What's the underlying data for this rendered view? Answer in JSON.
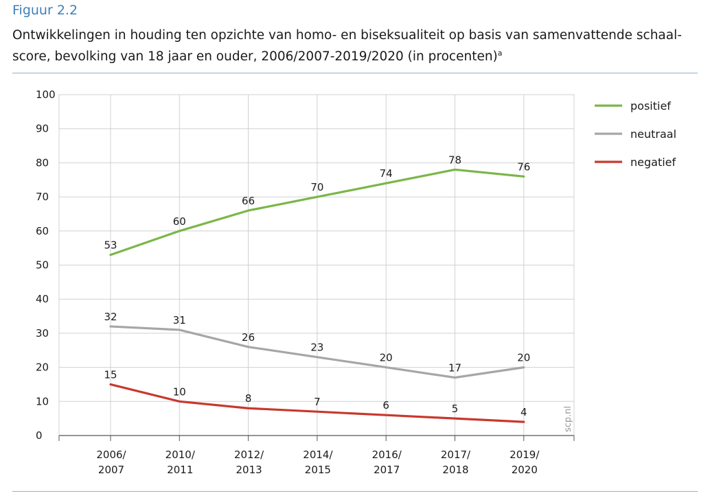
{
  "figure_label": "Figuur 2.2",
  "title_main": "Ontwikkelingen in houding ten opzichte van homo- en biseksualiteit op basis van samenvattende schaal-score, bevolking van 18 jaar en ouder, 2006/2007-2019/2020 (in procenten)",
  "title_note": "a",
  "watermark": "scp.nl",
  "colors": {
    "positief": "#7ab648",
    "neutraal": "#a6a6a6",
    "negatief": "#c8382d",
    "grid": "#d0d0d0",
    "rule": "#8fb0cc",
    "accent": "#3d7fb8"
  },
  "chart_data": {
    "type": "line",
    "categories": [
      "2006/2007",
      "2010/2011",
      "2012/2013",
      "2014/2015",
      "2016/2017",
      "2017/2018",
      "2019/2020"
    ],
    "category_lines": [
      [
        "2006/",
        "2007"
      ],
      [
        "2010/",
        "2011"
      ],
      [
        "2012/",
        "2013"
      ],
      [
        "2014/",
        "2015"
      ],
      [
        "2016/",
        "2017"
      ],
      [
        "2017/",
        "2018"
      ],
      [
        "2019/",
        "2020"
      ]
    ],
    "series": [
      {
        "name": "positief",
        "values": [
          53,
          60,
          66,
          70,
          74,
          78,
          76
        ]
      },
      {
        "name": "neutraal",
        "values": [
          32,
          31,
          26,
          23,
          20,
          17,
          20
        ]
      },
      {
        "name": "negatief",
        "values": [
          15,
          10,
          8,
          7,
          6,
          5,
          4
        ]
      }
    ],
    "ylim": [
      0,
      100
    ],
    "yticks": [
      0,
      10,
      20,
      30,
      40,
      50,
      60,
      70,
      80,
      90,
      100
    ],
    "grid": true,
    "legend": "right",
    "xlabel": "",
    "ylabel": ""
  }
}
